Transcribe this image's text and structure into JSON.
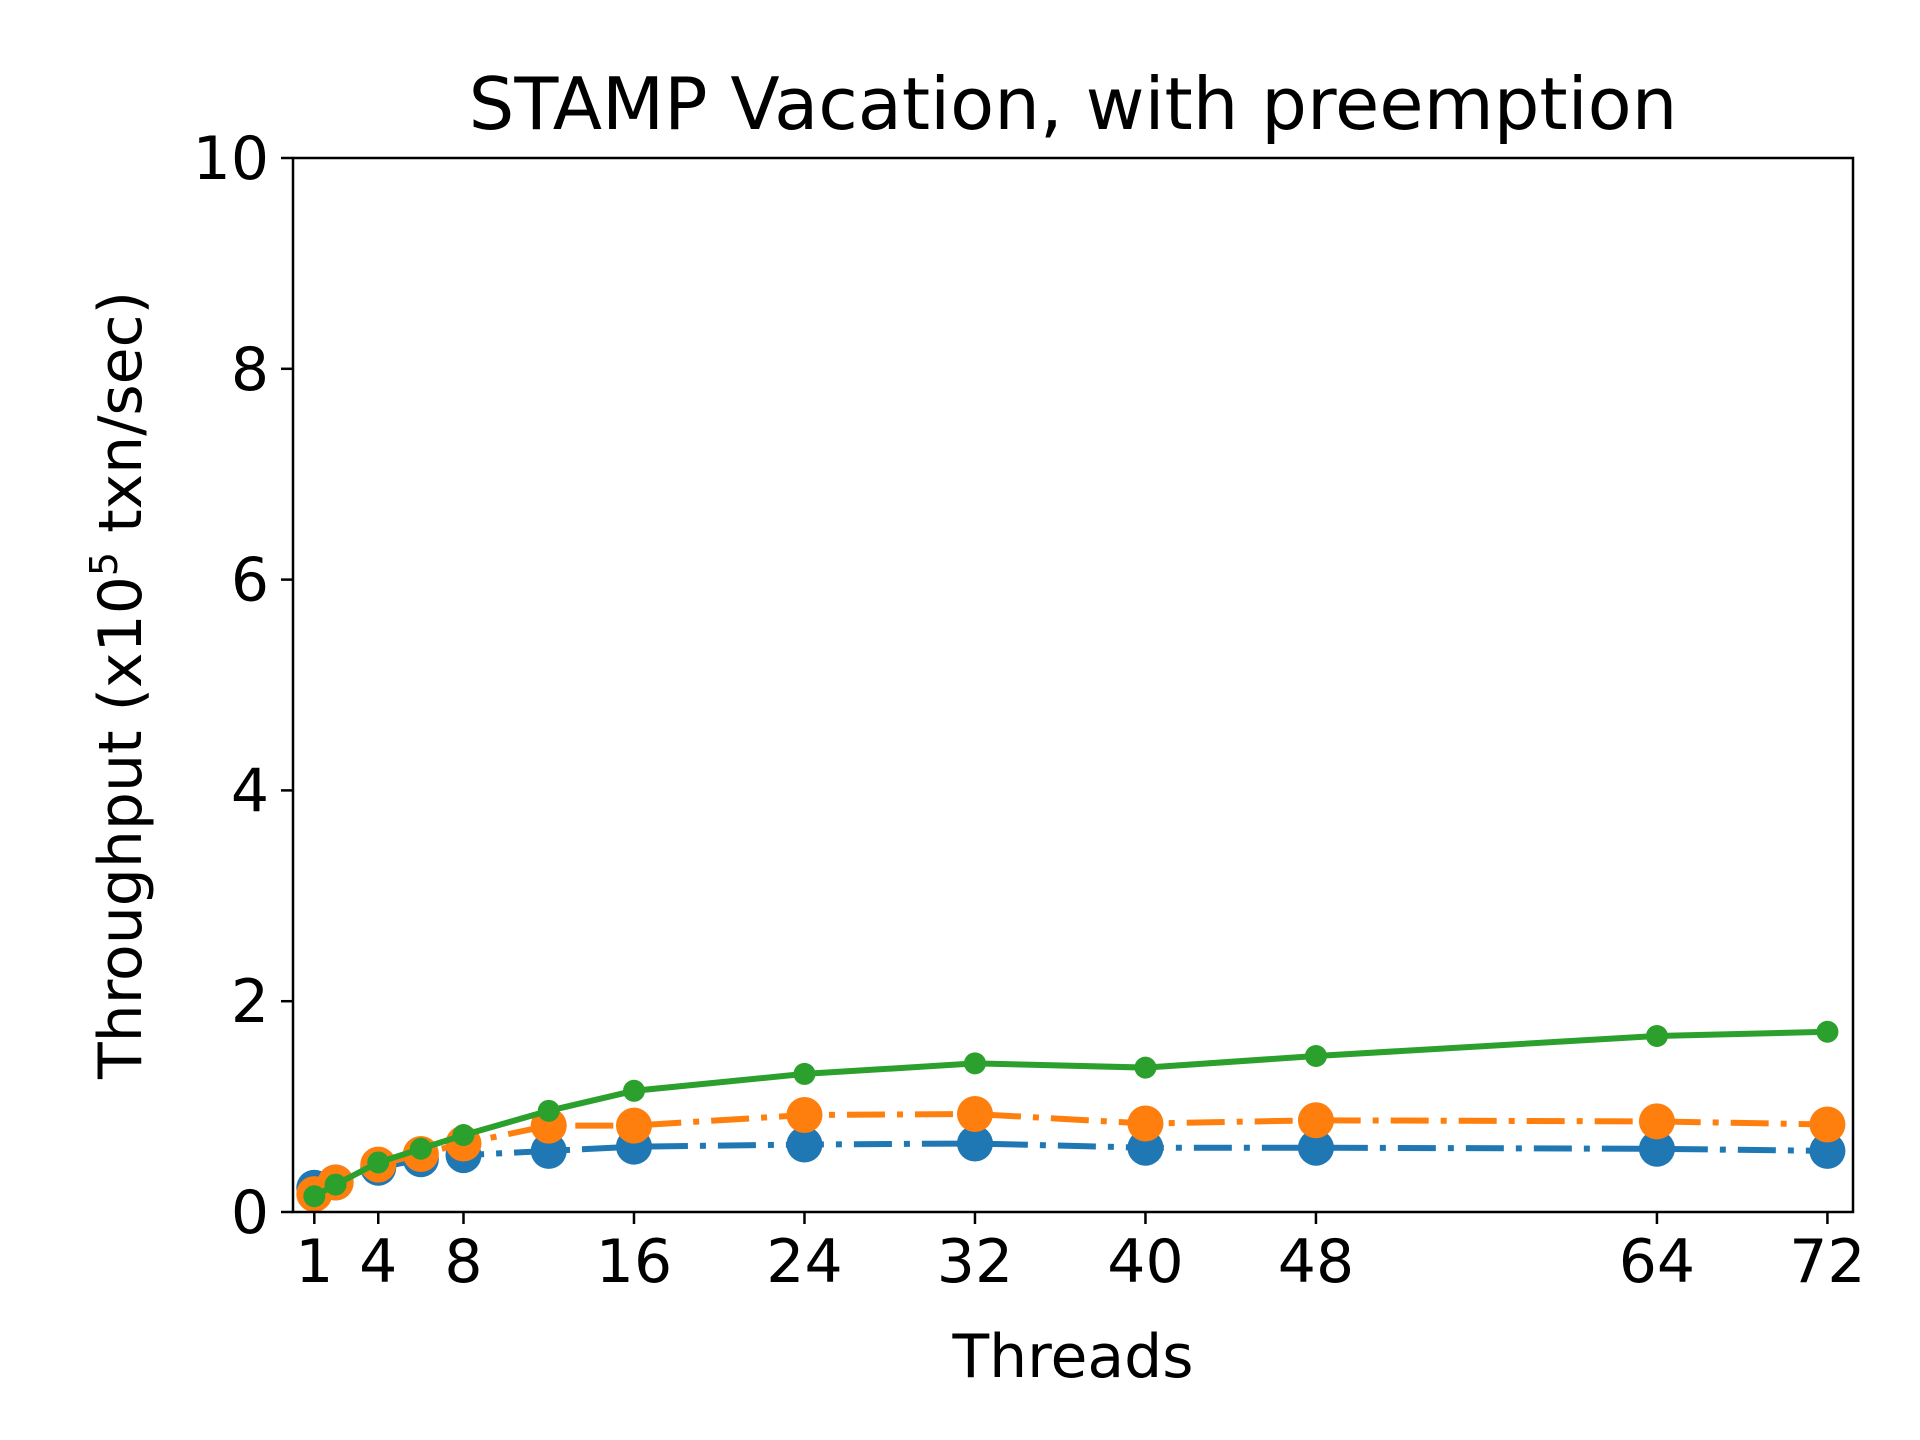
{
  "chart_data": {
    "type": "line",
    "title": "STAMP Vacation, with preemption",
    "xlabel": "Threads",
    "ylabel_main": "Throughput (x10",
    "ylabel_sup": "5",
    "ylabel_tail": " txn/sec)",
    "xlim": [
      0,
      73.2
    ],
    "ylim": [
      0,
      10
    ],
    "xticks": [
      1,
      4,
      8,
      16,
      24,
      32,
      40,
      48,
      64,
      72
    ],
    "xtick_labels": [
      "1",
      "4",
      "8",
      "16",
      "24",
      "32",
      "40",
      "48",
      "64",
      "72"
    ],
    "yticks": [
      0,
      2,
      4,
      6,
      8,
      10
    ],
    "ytick_labels": [
      "0",
      "2",
      "4",
      "6",
      "8",
      "10"
    ],
    "x": [
      1,
      2,
      4,
      6,
      8,
      12,
      16,
      24,
      32,
      40,
      48,
      64,
      72
    ],
    "series": [
      {
        "name": "series-blue",
        "color": "#1f77b4",
        "style": "dashdot",
        "marker": "large",
        "values": [
          0.23,
          0.28,
          0.42,
          0.5,
          0.54,
          0.58,
          0.62,
          0.64,
          0.65,
          0.61,
          0.61,
          0.6,
          0.58
        ]
      },
      {
        "name": "series-orange",
        "color": "#ff7f0e",
        "style": "dashdot",
        "marker": "large",
        "values": [
          0.17,
          0.28,
          0.45,
          0.55,
          0.65,
          0.82,
          0.82,
          0.92,
          0.93,
          0.84,
          0.87,
          0.86,
          0.83
        ]
      },
      {
        "name": "series-green",
        "color": "#2ca02c",
        "style": "solid",
        "marker": "small",
        "values": [
          0.15,
          0.26,
          0.47,
          0.6,
          0.73,
          0.96,
          1.15,
          1.31,
          1.41,
          1.37,
          1.48,
          1.67,
          1.71
        ]
      }
    ]
  }
}
